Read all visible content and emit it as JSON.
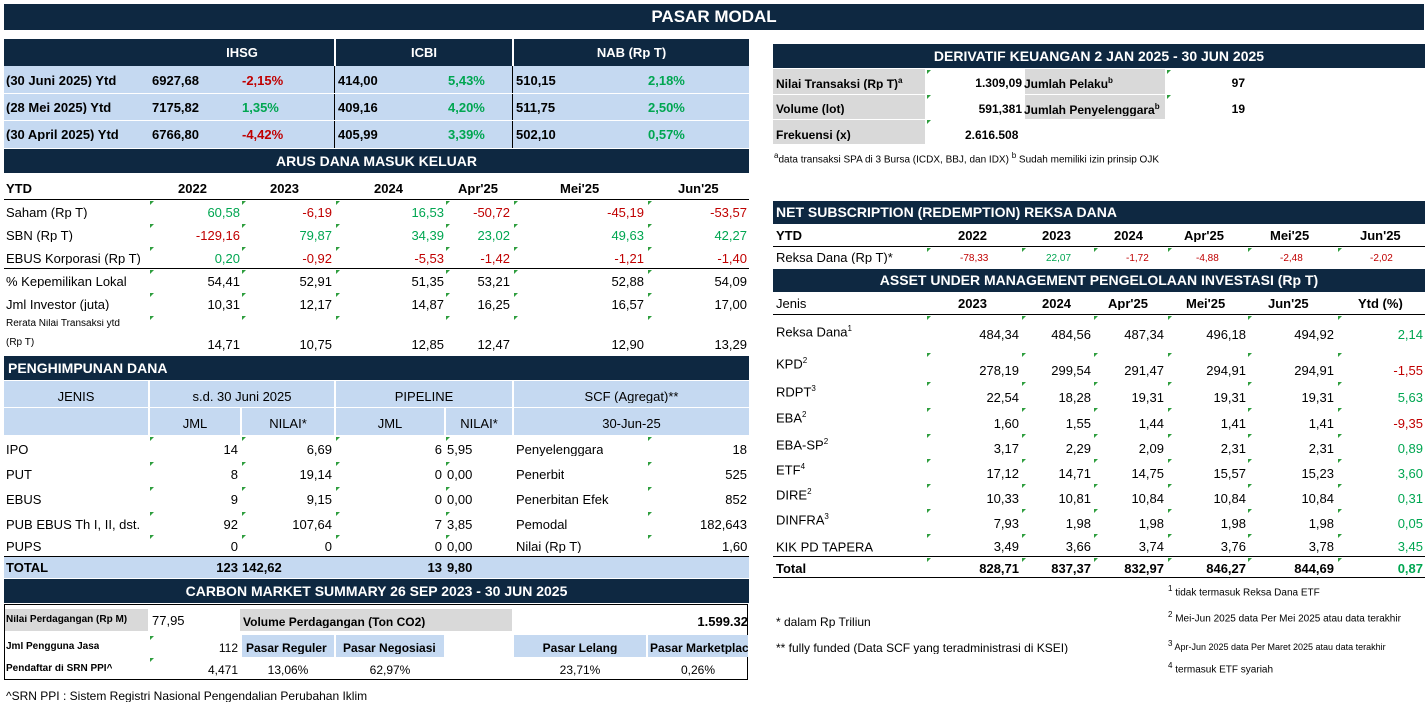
{
  "title": "PASAR MODAL",
  "indices": {
    "headers": [
      "IHSG",
      "ICBI",
      "NAB (Rp T)"
    ],
    "rows": [
      {
        "label": "(30 Juni 2025) Ytd",
        "ihsg": "6927,68",
        "ihsg_chg": "-2,15%",
        "icbi": "414,00",
        "icbi_chg": "5,43%",
        "nab": "510,15",
        "nab_chg": "2,18%"
      },
      {
        "label": "(28 Mei 2025) Ytd",
        "ihsg": "7175,82",
        "ihsg_chg": "1,35%",
        "icbi": "409,16",
        "icbi_chg": "4,20%",
        "nab": "511,75",
        "nab_chg": "2,50%"
      },
      {
        "label": "(30 April 2025) Ytd",
        "ihsg": "6766,80",
        "ihsg_chg": "-4,42%",
        "icbi": "405,99",
        "icbi_chg": "3,39%",
        "nab": "502,10",
        "nab_chg": "0,57%"
      }
    ]
  },
  "flows": {
    "title": "ARUS DANA MASUK KELUAR",
    "headers": [
      "YTD",
      "2022",
      "2023",
      "2024",
      "Apr'25",
      "Mei'25",
      "Jun'25"
    ],
    "rows": [
      {
        "label": "Saham (Rp T)",
        "v": [
          "60,58",
          "-6,19",
          "16,53",
          "-50,72",
          "-45,19",
          "-53,57"
        ]
      },
      {
        "label": "SBN (Rp T)",
        "v": [
          "-129,16",
          "79,87",
          "34,39",
          "23,02",
          "49,63",
          "42,27"
        ]
      },
      {
        "label": "EBUS Korporasi (Rp T)",
        "v": [
          "0,20",
          "-0,92",
          "-5,53",
          "-1,42",
          "-1,21",
          "-1,40"
        ]
      },
      {
        "label": "% Kepemilikan Lokal",
        "v": [
          "54,41",
          "52,91",
          "51,35",
          "53,21",
          "52,88",
          "54,09"
        ]
      },
      {
        "label": "Jml Investor (juta)",
        "v": [
          "10,31",
          "12,17",
          "14,87",
          "16,25",
          "16,57",
          "17,00"
        ]
      }
    ],
    "rerata_label_1": "Rerata Nilai Transaksi ytd",
    "rerata_label_2": "(Rp T)",
    "rerata_values": [
      "14,71",
      "10,75",
      "12,85",
      "12,47",
      "12,90",
      "13,29"
    ]
  },
  "fundraising": {
    "title": "PENGHIMPUNAN DANA",
    "h_jenis": "JENIS",
    "h_sd": "s.d. 30 Juni 2025",
    "h_pipeline": "PIPELINE",
    "h_scf": "SCF (Agregat)**",
    "h_jml": "JML",
    "h_nilai": "NILAI*",
    "h_jml2": "JML",
    "h_nilai2": "NILAI*",
    "h_date": "30-Jun-25",
    "rows": [
      {
        "jenis": "IPO",
        "jml": "14",
        "nilai": "6,69",
        "pjml": "6",
        "pnilai": "5,95",
        "scf_label": "Penyelenggara",
        "scf_val": "18"
      },
      {
        "jenis": "PUT",
        "jml": "8",
        "nilai": "19,14",
        "pjml": "0",
        "pnilai": "0,00",
        "scf_label": "Penerbit",
        "scf_val": "525"
      },
      {
        "jenis": "EBUS",
        "jml": "9",
        "nilai": "9,15",
        "pjml": "0",
        "pnilai": "0,00",
        "scf_label": "Penerbitan Efek",
        "scf_val": "852"
      },
      {
        "jenis": "PUB EBUS Th I, II, dst.",
        "jml": "92",
        "nilai": "107,64",
        "pjml": "7",
        "pnilai": "3,85",
        "scf_label": "Pemodal",
        "scf_val": "182,643"
      },
      {
        "jenis": "PUPS",
        "jml": "0",
        "nilai": "0",
        "pjml": "0",
        "pnilai": "0,00",
        "scf_label": "Nilai (Rp T)",
        "scf_val": "1,60"
      }
    ],
    "total_label": "TOTAL",
    "total_jml": "123",
    "total_nilai": "142,62",
    "total_pjml": "13",
    "total_pnilai": "9,80"
  },
  "carbon": {
    "title": "CARBON MARKET SUMMARY 26 SEP 2023 - 30 JUN 2025",
    "nilai_label": "Nilai Perdagangan (Rp M)",
    "nilai_val": "77,95",
    "volume_label": "Volume Perdagangan (Ton CO2)",
    "volume_val": "1.599.32",
    "pengguna_label": "Jml Pengguna Jasa",
    "pengguna_val": "112",
    "pasar_reguler": "Pasar Reguler",
    "pasar_negosiasi": "Pasar Negosiasi",
    "pasar_lelang": "Pasar Lelang",
    "pasar_marketplace": "Pasar Marketplace",
    "srn_label": "Pendaftar di SRN PPI^",
    "srn_val": "4,471",
    "reguler_pct": "13,06%",
    "negosiasi_pct": "62,97%",
    "lelang_pct": "23,71%",
    "marketplace_pct": "0,26%",
    "footnote": "^SRN PPI : Sistem Registri Nasional Pengendalian Perubahan Iklim"
  },
  "derivatif": {
    "title": "DERIVATIF KEUANGAN 2 JAN 2025 - 30 JUN 2025",
    "nilai_label": "Nilai Transaksi (Rp T)",
    "nilai_sup": "a",
    "nilai_val": "1.309,09",
    "pelaku_label": "Jumlah Pelaku",
    "pelaku_sup": "b",
    "pelaku_val": "97",
    "volume_label": "Volume (lot)",
    "volume_val": "591,381",
    "penyelenggara_label": "Jumlah Penyelenggara",
    "penyelenggara_sup": "b",
    "penyelenggara_val": "19",
    "frek_label": "Frekuensi (x)",
    "frek_val": "2.616.508",
    "note_a": "a",
    "note_text_1": "data transaksi SPA di 3 Bursa (ICDX, BBJ, dan IDX) ",
    "note_b": "b",
    "note_text_2": " Sudah memiliki izin prinsip OJK"
  },
  "netsub": {
    "title": "NET SUBSCRIPTION (REDEMPTION) REKSA DANA",
    "headers": [
      "YTD",
      "2022",
      "2023",
      "2024",
      "Apr'25",
      "Mei'25",
      "Jun'25"
    ],
    "label": "Reksa Dana (Rp T)*",
    "values": [
      "-78,33",
      "22,07",
      "-1,72",
      "-4,88",
      "-2,48",
      "-2,02"
    ]
  },
  "aum": {
    "title": "ASSET UNDER MANAGEMENT PENGELOLAAN INVESTASI (Rp T)",
    "headers": [
      "Jenis",
      "2023",
      "2024",
      "Apr'25",
      "Mei'25",
      "Jun'25",
      "Ytd (%)"
    ],
    "rows": [
      {
        "jenis": "Reksa Dana",
        "sup": "1",
        "v": [
          "484,34",
          "484,56",
          "487,34",
          "496,18",
          "494,92"
        ],
        "ytd": "2,14"
      },
      {
        "jenis": "KPD",
        "sup": "2",
        "v": [
          "278,19",
          "299,54",
          "291,47",
          "294,91",
          "294,91"
        ],
        "ytd": "-1,55"
      },
      {
        "jenis": "RDPT",
        "sup": "3",
        "v": [
          "22,54",
          "18,28",
          "19,31",
          "19,31",
          "19,31"
        ],
        "ytd": "5,63"
      },
      {
        "jenis": "EBA",
        "sup": "2",
        "v": [
          "1,60",
          "1,55",
          "1,44",
          "1,41",
          "1,41"
        ],
        "ytd": "-9,35"
      },
      {
        "jenis": "EBA-SP",
        "sup": "2",
        "v": [
          "3,17",
          "2,29",
          "2,09",
          "2,31",
          "2,31"
        ],
        "ytd": "0,89"
      },
      {
        "jenis": "ETF",
        "sup": "4",
        "v": [
          "17,12",
          "14,71",
          "14,75",
          "15,57",
          "15,23"
        ],
        "ytd": "3,60"
      },
      {
        "jenis": "DIRE",
        "sup": "2",
        "v": [
          "10,33",
          "10,81",
          "10,84",
          "10,84",
          "10,84"
        ],
        "ytd": "0,31"
      },
      {
        "jenis": "DINFRA",
        "sup": "3",
        "v": [
          "7,93",
          "1,98",
          "1,98",
          "1,98",
          "1,98"
        ],
        "ytd": "0,05"
      },
      {
        "jenis": "KIK PD TAPERA",
        "sup": "",
        "v": [
          "3,49",
          "3,66",
          "3,74",
          "3,76",
          "3,78"
        ],
        "ytd": "3,45"
      }
    ],
    "total_label": "Total",
    "total_v": [
      "828,71",
      "837,37",
      "832,97",
      "846,27",
      "844,69"
    ],
    "total_ytd": "0,87"
  },
  "notes": {
    "n1_sup": "1",
    "n1": " tidak termasuk Reksa Dana ETF",
    "n2_sup": "2",
    "n2": " Mei-Jun 2025 data Per Mei 2025 atau data terakhir",
    "n3_sup": "3",
    "n3": " Apr-Jun 2025 data Per Maret 2025 atau data terakhir",
    "n4_sup": "4",
    "n4": " termasuk ETF syariah",
    "dalam": "* dalam Rp Triliun",
    "fully": "** fully funded (Data SCF yang teradministrasi di KSEI)"
  }
}
